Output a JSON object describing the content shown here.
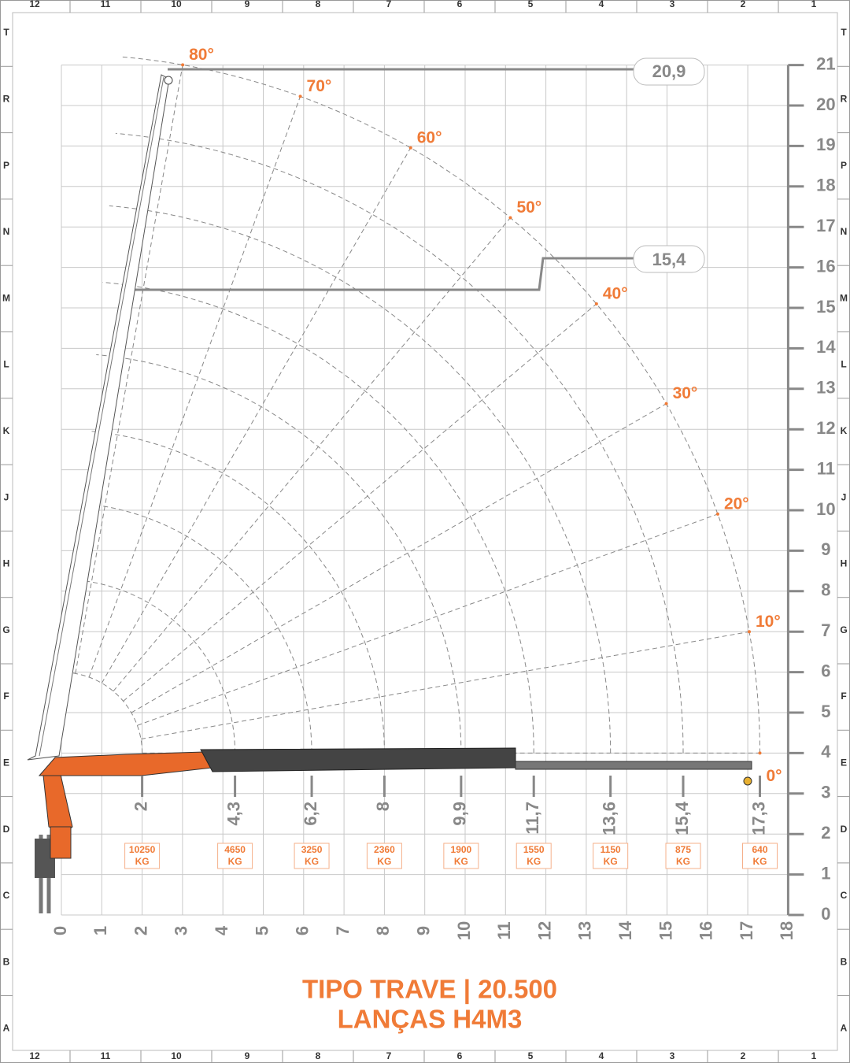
{
  "border": {
    "columns": [
      "12",
      "11",
      "10",
      "9",
      "8",
      "7",
      "6",
      "5",
      "4",
      "3",
      "2",
      "1"
    ],
    "rows": [
      "T",
      "R",
      "P",
      "N",
      "M",
      "L",
      "K",
      "J",
      "H",
      "G",
      "F",
      "E",
      "D",
      "C",
      "B",
      "A"
    ]
  },
  "axes": {
    "x_ticks": [
      "0",
      "1",
      "2",
      "3",
      "4",
      "5",
      "6",
      "7",
      "8",
      "9",
      "10",
      "11",
      "12",
      "13",
      "14",
      "15",
      "16",
      "17",
      "18"
    ],
    "y_ticks": [
      "0",
      "1",
      "2",
      "3",
      "4",
      "5",
      "6",
      "7",
      "8",
      "9",
      "10",
      "11",
      "12",
      "13",
      "14",
      "15",
      "16",
      "17",
      "18",
      "19",
      "20",
      "21"
    ]
  },
  "angles": [
    "0°",
    "10°",
    "20°",
    "30°",
    "40°",
    "50°",
    "60°",
    "70°",
    "80°"
  ],
  "max_heights": [
    "20,9",
    "15,4"
  ],
  "load_table": [
    {
      "reach": "2",
      "load": "10250",
      "unit": "KG"
    },
    {
      "reach": "4,3",
      "load": "4650",
      "unit": "KG"
    },
    {
      "reach": "6,2",
      "load": "3250",
      "unit": "KG"
    },
    {
      "reach": "8",
      "load": "2360",
      "unit": "KG"
    },
    {
      "reach": "9,9",
      "load": "1900",
      "unit": "KG"
    },
    {
      "reach": "11,7",
      "load": "1550",
      "unit": "KG"
    },
    {
      "reach": "13,6",
      "load": "1150",
      "unit": "KG"
    },
    {
      "reach": "15,4",
      "load": "875",
      "unit": "KG"
    },
    {
      "reach": "17,3",
      "load": "640",
      "unit": "KG"
    }
  ],
  "title": {
    "line1": "TIPO TRAVE | 20.500",
    "line2": "LANÇAS H4M3"
  }
}
